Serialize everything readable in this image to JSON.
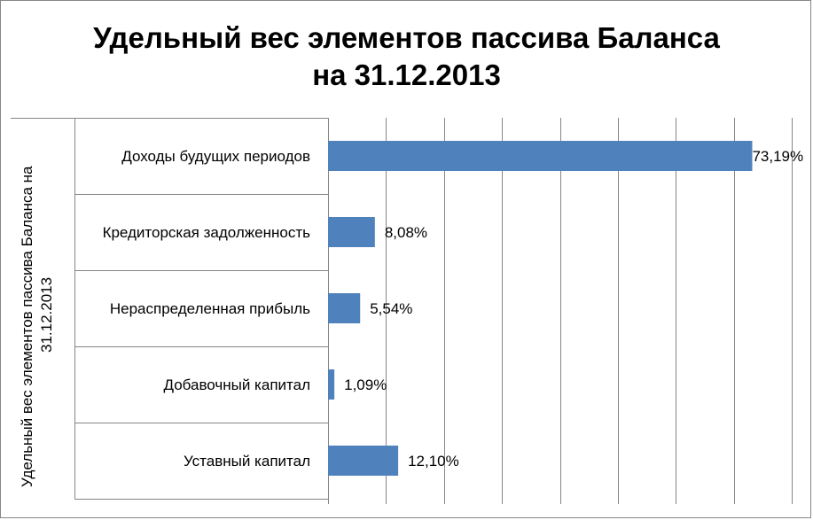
{
  "chart_data": {
    "type": "bar",
    "orientation": "horizontal",
    "title_lines": [
      "Удельный вес элементов пассива Баланса",
      "на 31.12.2013"
    ],
    "ylabel_lines": [
      "Удельный вес элементов пассива Баланса на",
      "31.12.2013"
    ],
    "xlabel": "",
    "categories": [
      "Доходы будущих периодов",
      "Кредиторская задолженность",
      "Нераспределенная прибыль",
      "Добавочный капитал",
      "Уставный капитал"
    ],
    "values": [
      73.19,
      8.08,
      5.54,
      1.09,
      12.1
    ],
    "data_labels": [
      "73,19%",
      "8,08%",
      "5,54%",
      "1,09%",
      "12,10%"
    ],
    "xlim": [
      0,
      80
    ],
    "x_gridline_step": 10,
    "grid": "vertical",
    "legend": "none",
    "bar_color": "#4F81BD",
    "gridline_color": "#868686"
  }
}
